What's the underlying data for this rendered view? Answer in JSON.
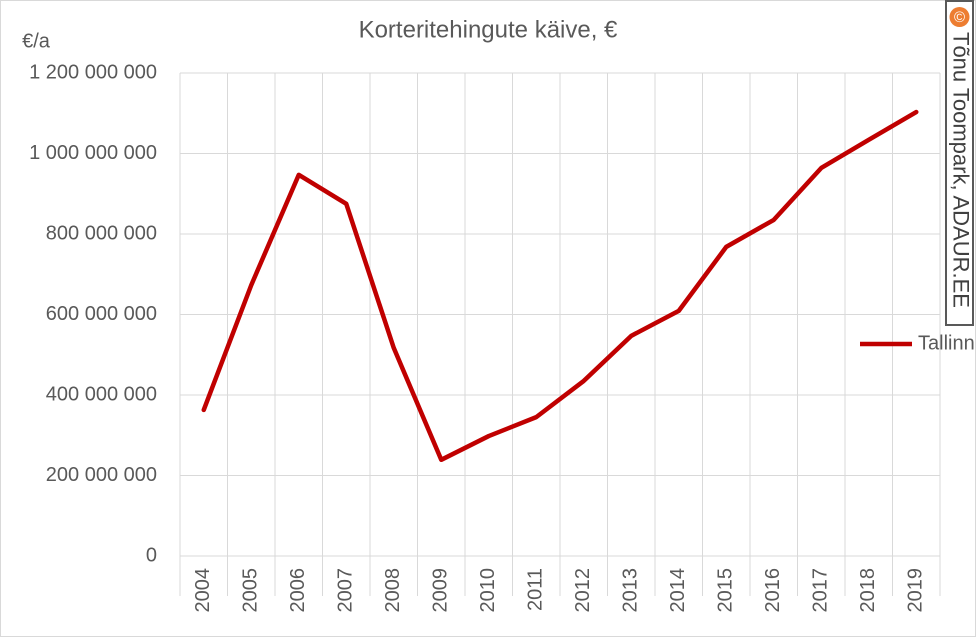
{
  "chart_data": {
    "type": "line",
    "title": "Korteritehingute käive, €",
    "y_label": "€/a",
    "categories": [
      "2004",
      "2005",
      "2006",
      "2007",
      "2008",
      "2009",
      "2010",
      "2011",
      "2012",
      "2013",
      "2014",
      "2015",
      "2016",
      "2017",
      "2018",
      "2019"
    ],
    "series": [
      {
        "name": "Tallinn",
        "color": "#c00000",
        "values": [
          363000000,
          673000000,
          947000000,
          875000000,
          517000000,
          239000000,
          298000000,
          345000000,
          435000000,
          547000000,
          609000000,
          768000000,
          835000000,
          964000000,
          1034000000,
          1103000000
        ]
      }
    ],
    "ylim": [
      0,
      1200000000
    ],
    "yticks": [
      0,
      {
        "value": 200000000,
        "label": "200 000 000"
      },
      {
        "value": 400000000,
        "label": "400 000 000"
      },
      {
        "value": 600000000,
        "label": "600 000 000"
      },
      {
        "value": 800000000,
        "label": "800 000 000"
      },
      {
        "value": 1000000000,
        "label": "1 000 000 000"
      },
      {
        "value": 1200000000,
        "label": "1 200 000 000"
      }
    ],
    "grid": true,
    "legend": "right",
    "watermark_symbol": "©",
    "watermark": "Tõnu Toompark, ADAUR.EE"
  }
}
